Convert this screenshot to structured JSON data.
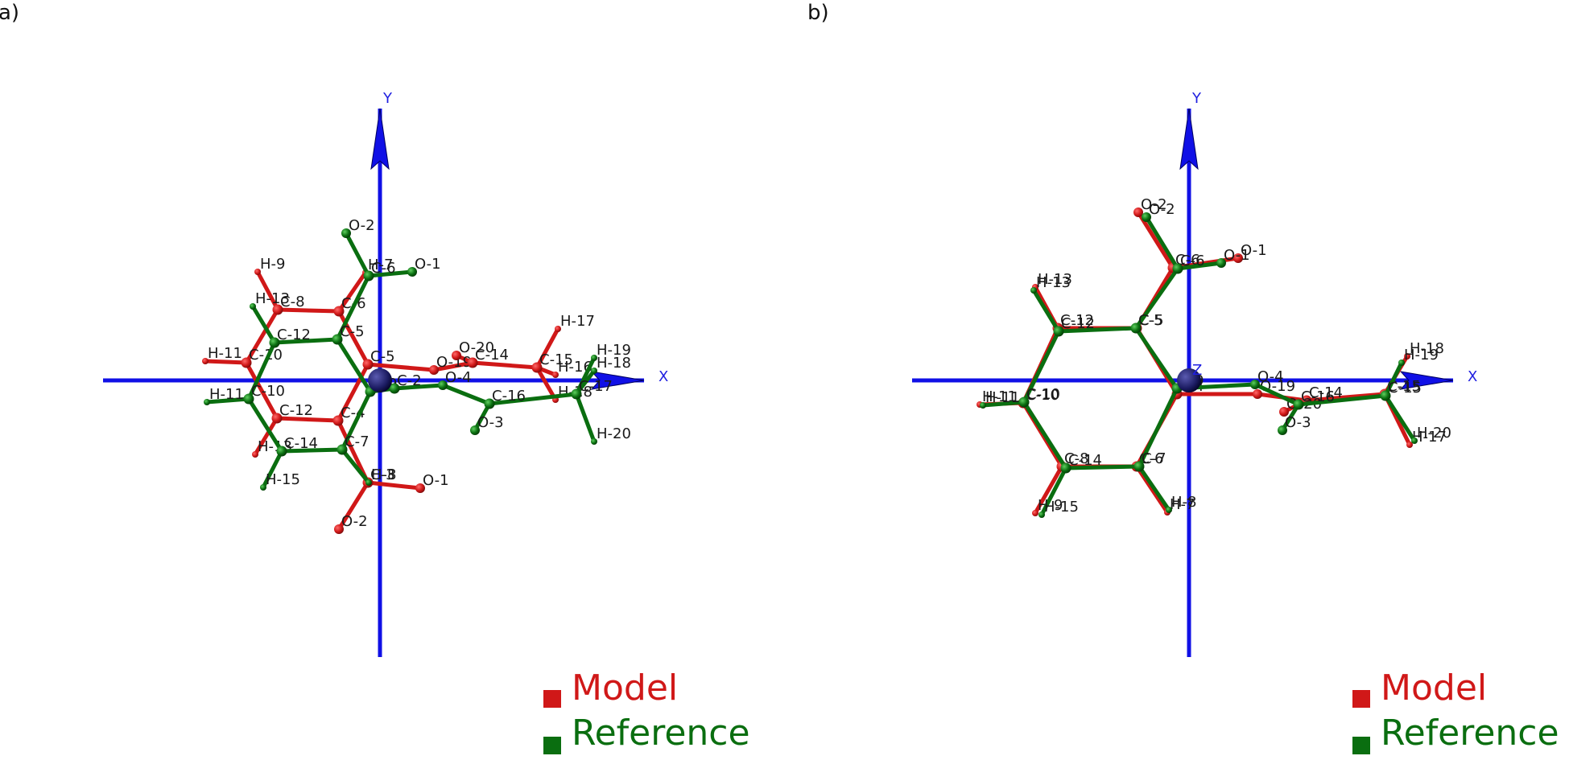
{
  "colors": {
    "model": "#d01818",
    "reference": "#0a6e10",
    "axis": "#1010e6",
    "origin": "#1a1a60",
    "text": "#1a1a1a"
  },
  "legend": {
    "model": "Model",
    "reference": "Reference"
  },
  "panels": [
    {
      "id": "a",
      "label": "a)",
      "axes": {
        "x": "X",
        "y": "Y"
      },
      "origin_label": "",
      "model": {
        "atoms": [
          {
            "id": "C-8",
            "label": "C-8",
            "x": -127,
            "y": 88,
            "el": "C"
          },
          {
            "id": "C-6",
            "label": "C-6",
            "x": -51,
            "y": 86,
            "el": "C"
          },
          {
            "id": "C-5",
            "label": "C-5",
            "x": -15,
            "y": 20,
            "el": "C"
          },
          {
            "id": "C-4",
            "label": "C-4",
            "x": -52,
            "y": -50,
            "el": "C"
          },
          {
            "id": "C-12",
            "label": "C-12",
            "x": -128,
            "y": -47,
            "el": "C"
          },
          {
            "id": "C-10",
            "label": "C-10",
            "x": -166,
            "y": 22,
            "el": "C"
          },
          {
            "id": "H-9",
            "label": "H-9",
            "x": -152,
            "y": 135,
            "el": "H"
          },
          {
            "id": "H-11",
            "label": "H-11",
            "x": -217,
            "y": 24,
            "el": "H"
          },
          {
            "id": "H-13",
            "label": "H-13",
            "x": -155,
            "y": -92,
            "el": "H"
          },
          {
            "id": "H-7",
            "label": "H-7",
            "x": -18,
            "y": 134,
            "el": "H"
          },
          {
            "id": "C-3",
            "label": "C-3",
            "x": -15,
            "y": -127,
            "el": "C"
          },
          {
            "id": "O-1",
            "label": "O-1",
            "x": 50,
            "y": -134,
            "el": "O"
          },
          {
            "id": "O-2",
            "label": "O-2",
            "x": -51,
            "y": -185,
            "el": "O"
          },
          {
            "id": "O-19",
            "label": "O-19",
            "x": 67,
            "y": 13,
            "el": "O"
          },
          {
            "id": "C-14",
            "label": "C-14",
            "x": 115,
            "y": 22,
            "el": "C"
          },
          {
            "id": "O-20",
            "label": "O-20",
            "x": 95,
            "y": 31,
            "el": "O"
          },
          {
            "id": "C-15",
            "label": "C-15",
            "x": 195,
            "y": 16,
            "el": "C"
          },
          {
            "id": "H-17",
            "label": "H-17",
            "x": 221,
            "y": 64,
            "el": "H"
          },
          {
            "id": "H-18",
            "label": "H-18",
            "x": 218,
            "y": -24,
            "el": "H"
          },
          {
            "id": "H-16",
            "label": "H-16",
            "x": 218,
            "y": 7,
            "el": "H"
          }
        ],
        "bonds": [
          [
            "C-8",
            "C-6"
          ],
          [
            "C-6",
            "C-5"
          ],
          [
            "C-5",
            "C-4"
          ],
          [
            "C-4",
            "C-12"
          ],
          [
            "C-12",
            "C-10"
          ],
          [
            "C-10",
            "C-8"
          ],
          [
            "C-8",
            "H-9"
          ],
          [
            "C-10",
            "H-11"
          ],
          [
            "C-12",
            "H-13"
          ],
          [
            "C-6",
            "H-7"
          ],
          [
            "C-4",
            "C-3"
          ],
          [
            "C-3",
            "O-1"
          ],
          [
            "C-3",
            "O-2"
          ],
          [
            "C-5",
            "O-19"
          ],
          [
            "O-19",
            "C-14"
          ],
          [
            "C-14",
            "O-20"
          ],
          [
            "C-14",
            "C-15"
          ],
          [
            "C-15",
            "H-17"
          ],
          [
            "C-15",
            "H-18"
          ],
          [
            "C-15",
            "H-16"
          ]
        ]
      },
      "reference": {
        "atoms": [
          {
            "id": "C-12",
            "label": "C-12",
            "x": -131,
            "y": 47,
            "el": "C"
          },
          {
            "id": "C-5",
            "label": "C-5",
            "x": -53,
            "y": 51,
            "el": "C"
          },
          {
            "id": "C-9",
            "label": "C-9",
            "x": -12,
            "y": -14,
            "el": "C"
          },
          {
            "id": "C-7",
            "label": "C-7",
            "x": -47,
            "y": -86,
            "el": "C"
          },
          {
            "id": "C-14",
            "label": "C-14",
            "x": -122,
            "y": -88,
            "el": "C"
          },
          {
            "id": "C-10",
            "label": "C-10",
            "x": -163,
            "y": -23,
            "el": "C"
          },
          {
            "id": "H-13",
            "label": "H-13",
            "x": -158,
            "y": 92,
            "el": "H"
          },
          {
            "id": "H-11",
            "label": "H-11",
            "x": -215,
            "y": -27,
            "el": "H"
          },
          {
            "id": "H-15",
            "label": "H-15",
            "x": -145,
            "y": -133,
            "el": "H"
          },
          {
            "id": "C-6",
            "label": "C-6",
            "x": -14,
            "y": 130,
            "el": "C"
          },
          {
            "id": "O-1",
            "label": "O-1",
            "x": 40,
            "y": 135,
            "el": "O"
          },
          {
            "id": "O-2",
            "label": "O-2",
            "x": -42,
            "y": 183,
            "el": "O"
          },
          {
            "id": "H-8",
            "label": "H-8",
            "x": -14,
            "y": -127,
            "el": "H"
          },
          {
            "id": "C-2",
            "label": "C-2",
            "x": 18,
            "y": -10,
            "el": "C"
          },
          {
            "id": "O-4",
            "label": "O-4",
            "x": 78,
            "y": -6,
            "el": "O"
          },
          {
            "id": "C-16",
            "label": "C-16",
            "x": 136,
            "y": -29,
            "el": "C"
          },
          {
            "id": "O-3",
            "label": "O-3",
            "x": 118,
            "y": -62,
            "el": "O"
          },
          {
            "id": "C-17",
            "label": "C-17",
            "x": 244,
            "y": -17,
            "el": "C"
          },
          {
            "id": "H-19",
            "label": "H-19",
            "x": 266,
            "y": 28,
            "el": "H"
          },
          {
            "id": "H-20",
            "label": "H-20",
            "x": 266,
            "y": -76,
            "el": "H"
          },
          {
            "id": "H-18",
            "label": "H-18",
            "x": 266,
            "y": 12,
            "el": "H"
          }
        ],
        "bonds": [
          [
            "C-12",
            "C-5"
          ],
          [
            "C-5",
            "C-9"
          ],
          [
            "C-9",
            "C-7"
          ],
          [
            "C-7",
            "C-14"
          ],
          [
            "C-14",
            "C-10"
          ],
          [
            "C-10",
            "C-12"
          ],
          [
            "C-12",
            "H-13"
          ],
          [
            "C-10",
            "H-11"
          ],
          [
            "C-14",
            "H-15"
          ],
          [
            "C-5",
            "C-6"
          ],
          [
            "C-6",
            "O-1"
          ],
          [
            "C-6",
            "O-2"
          ],
          [
            "C-7",
            "H-8"
          ],
          [
            "C-9",
            "C-2"
          ],
          [
            "C-2",
            "O-4"
          ],
          [
            "O-4",
            "C-16"
          ],
          [
            "C-16",
            "O-3"
          ],
          [
            "C-16",
            "C-17"
          ],
          [
            "C-17",
            "H-19"
          ],
          [
            "C-17",
            "H-20"
          ],
          [
            "C-17",
            "H-18"
          ]
        ]
      }
    },
    {
      "id": "b",
      "label": "b)",
      "axes": {
        "x": "X",
        "y": "Y"
      },
      "origin_label": "Z",
      "model": {
        "atoms": [
          {
            "id": "C-5",
            "label": "C-5",
            "x": -65,
            "y": 65,
            "el": "C"
          },
          {
            "id": "C-6",
            "label": "C-6",
            "x": -20,
            "y": 140,
            "el": "C"
          },
          {
            "id": "O-1",
            "label": "O-1",
            "x": 61,
            "y": 152,
            "el": "O"
          },
          {
            "id": "O-2",
            "label": "O-2",
            "x": -63,
            "y": 209,
            "el": "O"
          },
          {
            "id": "C-12",
            "label": "C-12",
            "x": -163,
            "y": 65,
            "el": "C"
          },
          {
            "id": "H-13",
            "label": "H-13",
            "x": -191,
            "y": 116,
            "el": "H"
          },
          {
            "id": "C-10",
            "label": "C-10",
            "x": -206,
            "y": -28,
            "el": "C"
          },
          {
            "id": "H-11",
            "label": "H-11",
            "x": -260,
            "y": -30,
            "el": "H"
          },
          {
            "id": "C-8",
            "label": "C-8",
            "x": -158,
            "y": -107,
            "el": "C"
          },
          {
            "id": "H-9",
            "label": "H-9",
            "x": -191,
            "y": -165,
            "el": "H"
          },
          {
            "id": "C-6b",
            "label": "C-6",
            "x": -65,
            "y": -107,
            "el": "C"
          },
          {
            "id": "H-7",
            "label": "H-7",
            "x": -27,
            "y": -164,
            "el": "H"
          },
          {
            "id": "C-4",
            "label": "C-4",
            "x": -15,
            "y": -17,
            "el": "C"
          },
          {
            "id": "O-19",
            "label": "O-19",
            "x": 85,
            "y": -17,
            "el": "O"
          },
          {
            "id": "C-14",
            "label": "C-14",
            "x": 146,
            "y": -25,
            "el": "C"
          },
          {
            "id": "O-20",
            "label": "O-20",
            "x": 118,
            "y": -39,
            "el": "O"
          },
          {
            "id": "C-15",
            "label": "C-15",
            "x": 243,
            "y": -17,
            "el": "C"
          },
          {
            "id": "H-18",
            "label": "H-18",
            "x": 271,
            "y": 30,
            "el": "H"
          },
          {
            "id": "H-17",
            "label": "H-17",
            "x": 274,
            "y": -80,
            "el": "H"
          }
        ],
        "bonds": [
          [
            "C-5",
            "C-6"
          ],
          [
            "C-6",
            "O-1"
          ],
          [
            "C-6",
            "O-2"
          ],
          [
            "C-5",
            "C-12"
          ],
          [
            "C-12",
            "H-13"
          ],
          [
            "C-12",
            "C-10"
          ],
          [
            "C-10",
            "H-11"
          ],
          [
            "C-10",
            "C-8"
          ],
          [
            "C-8",
            "H-9"
          ],
          [
            "C-8",
            "C-6b"
          ],
          [
            "C-6b",
            "H-7"
          ],
          [
            "C-6b",
            "C-4"
          ],
          [
            "C-4",
            "C-5"
          ],
          [
            "C-4",
            "O-19"
          ],
          [
            "O-19",
            "C-14"
          ],
          [
            "C-14",
            "O-20"
          ],
          [
            "C-14",
            "C-15"
          ],
          [
            "C-15",
            "H-18"
          ],
          [
            "C-15",
            "H-17"
          ]
        ]
      },
      "reference": {
        "atoms": [
          {
            "id": "C-5",
            "label": "C-5",
            "x": -66,
            "y": 65,
            "el": "C"
          },
          {
            "id": "C-6",
            "label": "C-6",
            "x": -14,
            "y": 139,
            "el": "C"
          },
          {
            "id": "O-1",
            "label": "O-1",
            "x": 40,
            "y": 146,
            "el": "O"
          },
          {
            "id": "O-2",
            "label": "O-2",
            "x": -53,
            "y": 203,
            "el": "O"
          },
          {
            "id": "C-12",
            "label": "C-12",
            "x": -162,
            "y": 61,
            "el": "C"
          },
          {
            "id": "H-13",
            "label": "H-13",
            "x": -193,
            "y": 112,
            "el": "H"
          },
          {
            "id": "C-10",
            "label": "C-10",
            "x": -205,
            "y": -27,
            "el": "C"
          },
          {
            "id": "H-11",
            "label": "H-11",
            "x": -256,
            "y": -31,
            "el": "H"
          },
          {
            "id": "C-14",
            "label": "C-14",
            "x": -153,
            "y": -109,
            "el": "C"
          },
          {
            "id": "H-15",
            "label": "H-15",
            "x": -183,
            "y": -167,
            "el": "H"
          },
          {
            "id": "C-7",
            "label": "C-7",
            "x": -62,
            "y": -107,
            "el": "C"
          },
          {
            "id": "H-8",
            "label": "H-8",
            "x": -25,
            "y": -161,
            "el": "H"
          },
          {
            "id": "C-9",
            "label": "C-9",
            "x": -15,
            "y": -10,
            "el": "C"
          },
          {
            "id": "O-4",
            "label": "O-4",
            "x": 82,
            "y": -5,
            "el": "O"
          },
          {
            "id": "C-16",
            "label": "C-16",
            "x": 136,
            "y": -30,
            "el": "C"
          },
          {
            "id": "O-3",
            "label": "O-3",
            "x": 116,
            "y": -62,
            "el": "O"
          },
          {
            "id": "C-15",
            "label": "C-15",
            "x": 244,
            "y": -19,
            "el": "C"
          },
          {
            "id": "H-19",
            "label": "H-19",
            "x": 264,
            "y": 22,
            "el": "H"
          },
          {
            "id": "H-20",
            "label": "H-20",
            "x": 280,
            "y": -75,
            "el": "H"
          }
        ],
        "bonds": [
          [
            "C-5",
            "C-6"
          ],
          [
            "C-6",
            "O-1"
          ],
          [
            "C-6",
            "O-2"
          ],
          [
            "C-5",
            "C-12"
          ],
          [
            "C-12",
            "H-13"
          ],
          [
            "C-12",
            "C-10"
          ],
          [
            "C-10",
            "H-11"
          ],
          [
            "C-10",
            "C-14"
          ],
          [
            "C-14",
            "H-15"
          ],
          [
            "C-14",
            "C-7"
          ],
          [
            "C-7",
            "H-8"
          ],
          [
            "C-7",
            "C-9"
          ],
          [
            "C-9",
            "C-5"
          ],
          [
            "C-9",
            "O-4"
          ],
          [
            "O-4",
            "C-16"
          ],
          [
            "C-16",
            "O-3"
          ],
          [
            "C-16",
            "C-15"
          ],
          [
            "C-15",
            "H-19"
          ],
          [
            "C-15",
            "H-20"
          ]
        ]
      }
    }
  ]
}
